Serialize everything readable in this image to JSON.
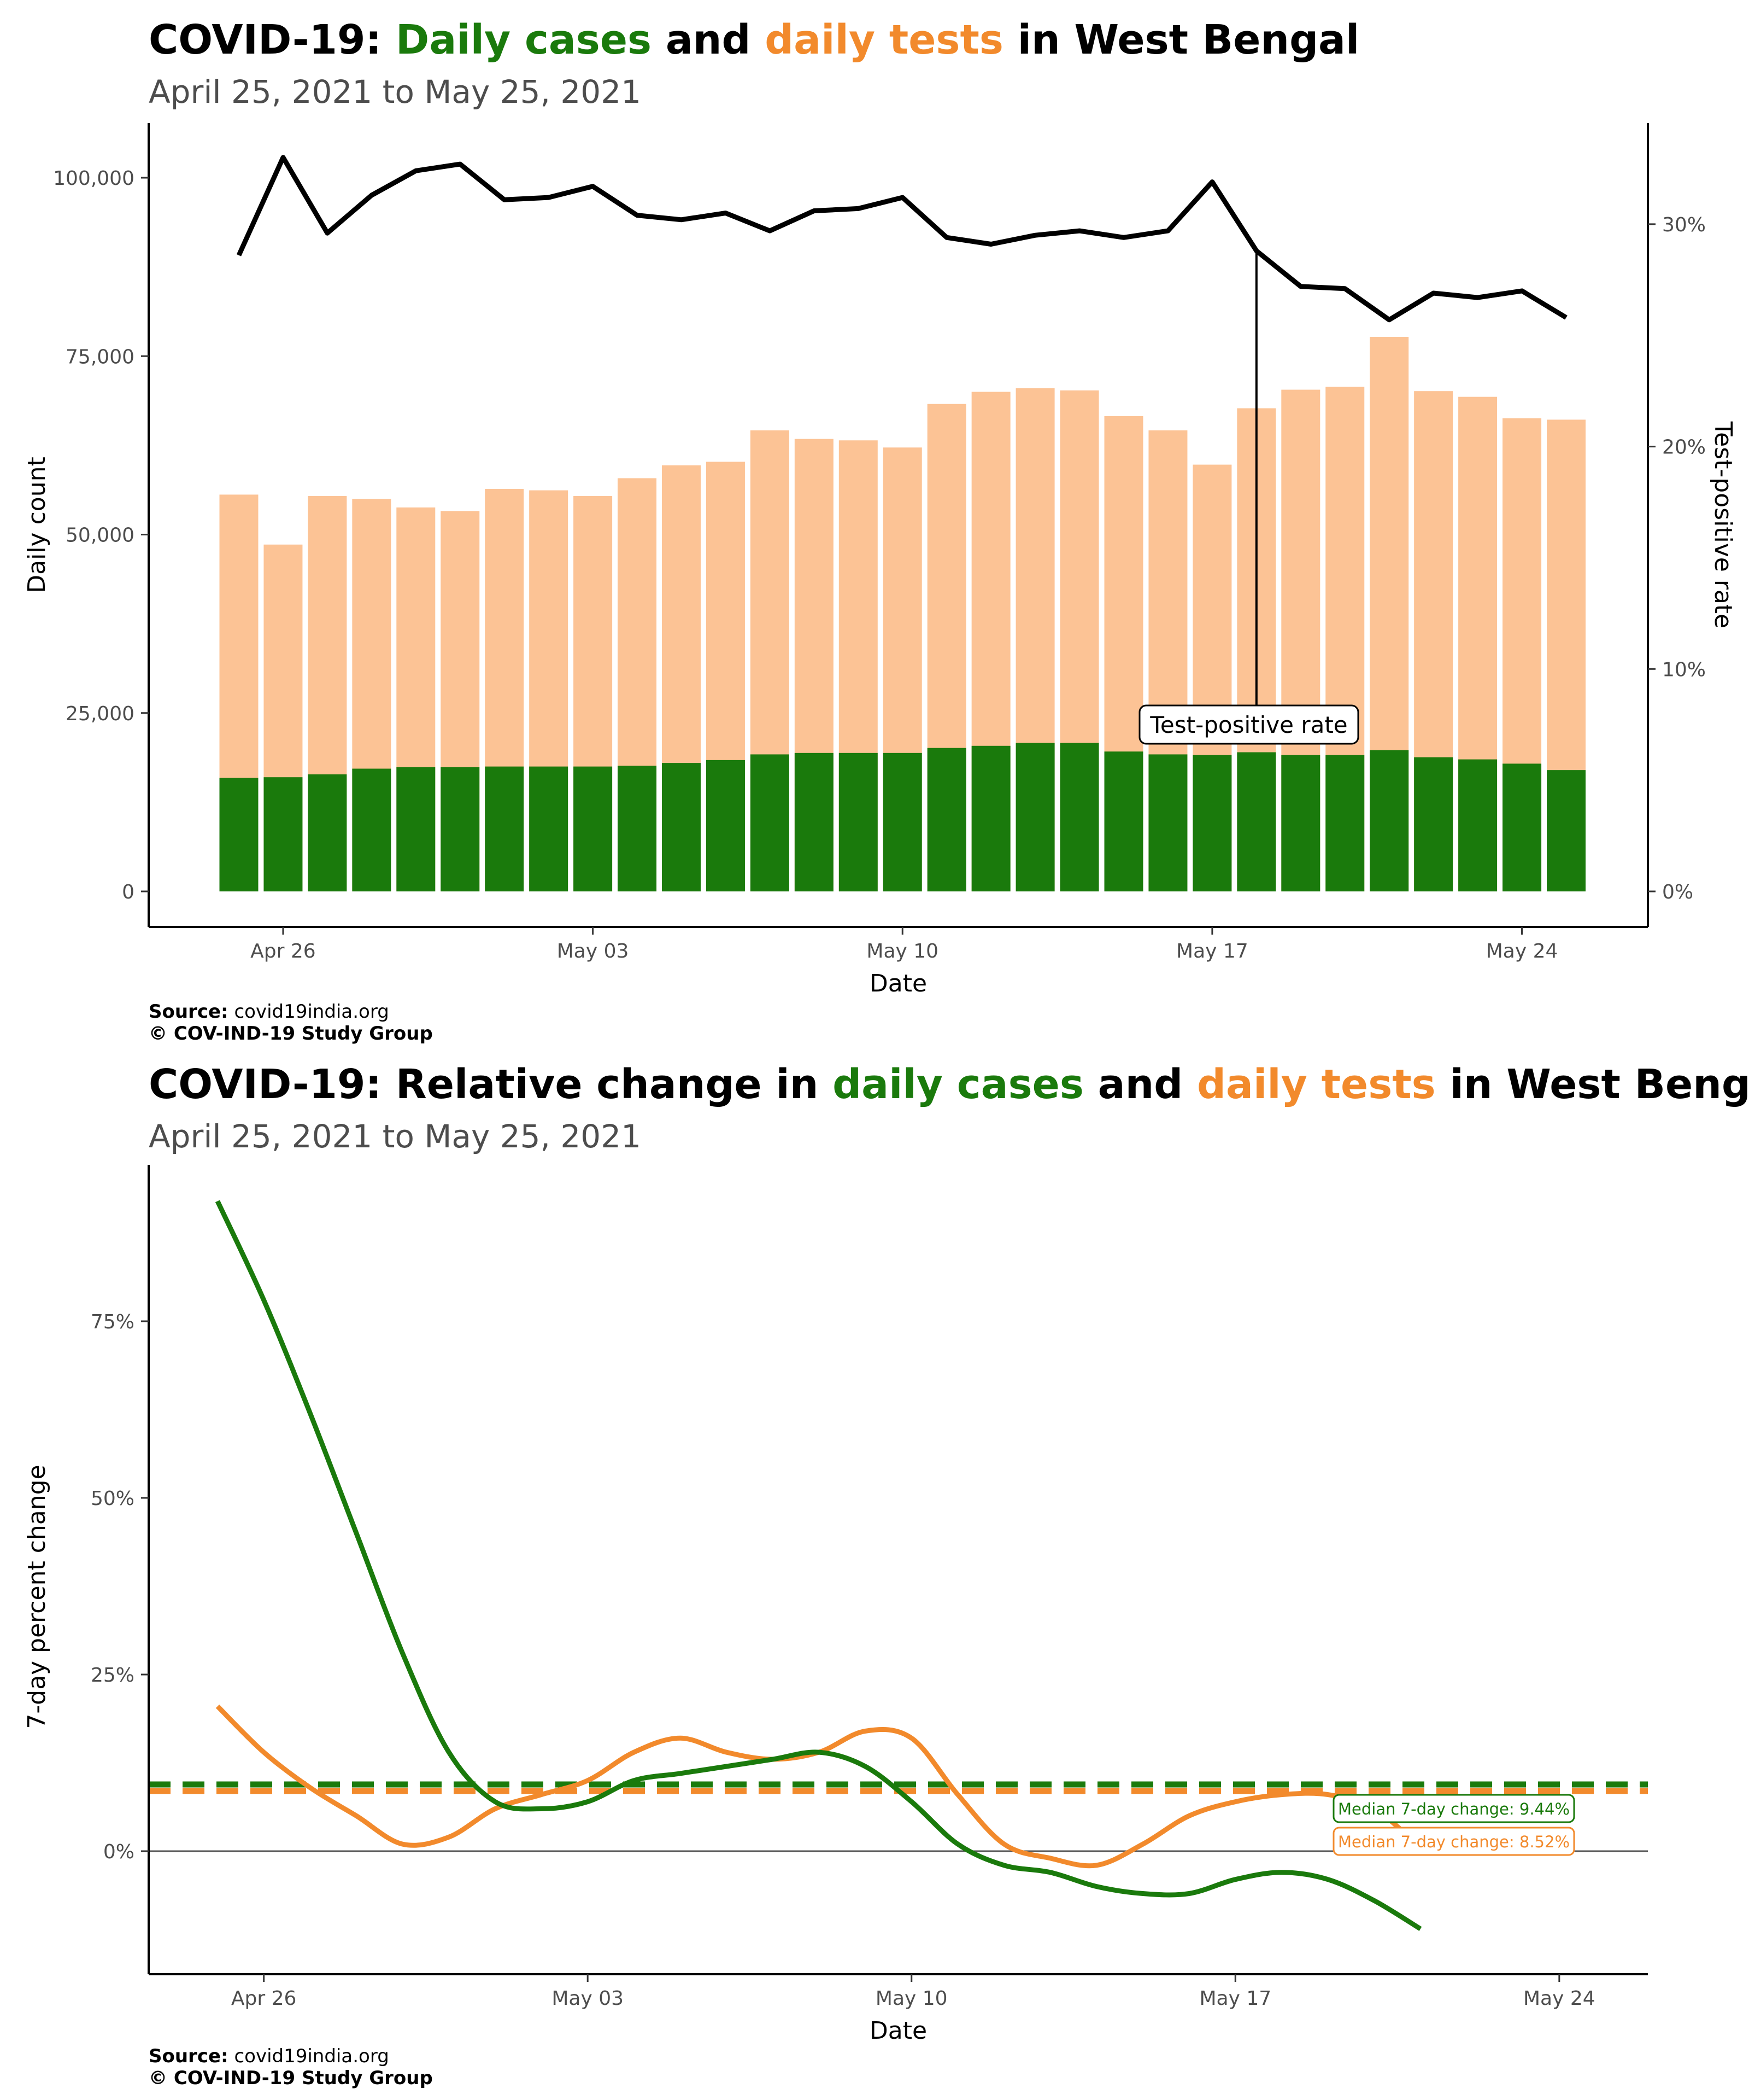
{
  "chart1": {
    "title_parts": {
      "prefix": "COVID-19: ",
      "cases": "Daily cases",
      "and": " and ",
      "tests": "daily tests",
      "suffix": " in West Bengal"
    },
    "subtitle": "April 25, 2021 to May 25, 2021",
    "source_label": "Source:",
    "source_text": " covid19india.org",
    "copyright": "© COV-IND-19 Study Group"
  },
  "chart2": {
    "title_parts": {
      "prefix": "COVID-19: Relative change in ",
      "cases": "daily cases",
      "and": " and ",
      "tests": "daily tests",
      "suffix": " in West Bengal"
    },
    "subtitle": "April 25, 2021 to May 25, 2021",
    "source_label": "Source:",
    "source_text": " covid19india.org",
    "copyright": "© COV-IND-19 Study Group"
  },
  "colors": {
    "cases": "#1a7a0c",
    "tests": "#fcc395",
    "tests_line": "#f28a2c",
    "tpr": "#000000"
  },
  "chart_data": [
    {
      "type": "bar",
      "xlabel": "Date",
      "ylabel": "Daily count",
      "y2label": "Test-positive rate",
      "ylim": [
        0,
        100000
      ],
      "y_ticks": [
        "0",
        "25,000",
        "50,000",
        "75,000",
        "100,000"
      ],
      "y2_ticks": [
        "0%",
        "10%",
        "20%",
        "30%"
      ],
      "x_ticks": [
        "Apr 26",
        "May 03",
        "May 10",
        "May 17",
        "May 24"
      ],
      "annotation": "Test-positive rate",
      "dates": [
        "2021-04-25",
        "2021-04-26",
        "2021-04-27",
        "2021-04-28",
        "2021-04-29",
        "2021-04-30",
        "2021-05-01",
        "2021-05-02",
        "2021-05-03",
        "2021-05-04",
        "2021-05-05",
        "2021-05-06",
        "2021-05-07",
        "2021-05-08",
        "2021-05-09",
        "2021-05-10",
        "2021-05-11",
        "2021-05-12",
        "2021-05-13",
        "2021-05-14",
        "2021-05-15",
        "2021-05-16",
        "2021-05-17",
        "2021-05-18",
        "2021-05-19",
        "2021-05-20",
        "2021-05-21",
        "2021-05-22",
        "2021-05-23",
        "2021-05-24",
        "2021-05-25"
      ],
      "series": [
        {
          "name": "Daily cases",
          "values": [
            15900,
            16000,
            16400,
            17200,
            17400,
            17400,
            17500,
            17500,
            17500,
            17600,
            18000,
            18400,
            19200,
            19400,
            19400,
            19400,
            20100,
            20400,
            20800,
            20800,
            19600,
            19200,
            19100,
            19500,
            19100,
            19100,
            19800,
            18800,
            18500,
            17900,
            17000
          ]
        },
        {
          "name": "Daily tests",
          "values": [
            55600,
            48600,
            55400,
            55000,
            53800,
            53300,
            56400,
            56200,
            55400,
            57900,
            59700,
            60200,
            64600,
            63400,
            63200,
            62200,
            68300,
            70000,
            70500,
            70200,
            66600,
            64600,
            59800,
            67700,
            70300,
            70700,
            77700,
            70100,
            69300,
            66300,
            66100
          ]
        },
        {
          "name": "Test-positive rate",
          "values": [
            28.6,
            33.0,
            29.6,
            31.3,
            32.4,
            32.7,
            31.1,
            31.2,
            31.7,
            30.4,
            30.2,
            30.5,
            29.7,
            30.6,
            30.7,
            31.2,
            29.4,
            29.1,
            29.5,
            29.7,
            29.4,
            29.7,
            31.9,
            28.8,
            27.2,
            27.1,
            25.7,
            26.9,
            26.7,
            27.0,
            25.8
          ]
        }
      ]
    },
    {
      "type": "line",
      "xlabel": "Date",
      "ylabel": "7-day percent change",
      "ylim": [
        -16,
        97
      ],
      "y_ticks": [
        "0%",
        "25%",
        "50%",
        "75%"
      ],
      "x_ticks": [
        "Apr 26",
        "May 03",
        "May 10",
        "May 17",
        "May 24"
      ],
      "series": [
        {
          "name": "Daily cases",
          "values": [
            92,
            78,
            62,
            45,
            28,
            14,
            7,
            6,
            7,
            10,
            11,
            12,
            13,
            14,
            12,
            7,
            1,
            -2,
            -3,
            -5,
            -6,
            -6,
            -4,
            -3,
            -4,
            -7,
            -11
          ]
        },
        {
          "name": "Daily tests",
          "values": [
            20.5,
            14,
            9,
            5,
            1,
            2,
            6,
            8,
            10,
            14,
            16,
            14,
            13,
            14,
            17,
            16,
            8,
            1,
            -1,
            -2,
            1,
            5,
            7,
            8,
            8,
            6,
            0.5
          ]
        }
      ],
      "reference_lines": [
        {
          "label": "Median 7-day change: 9.44%",
          "value": 9.44
        },
        {
          "label": "Median 7-day change: 8.52%",
          "value": 8.52
        }
      ]
    }
  ]
}
